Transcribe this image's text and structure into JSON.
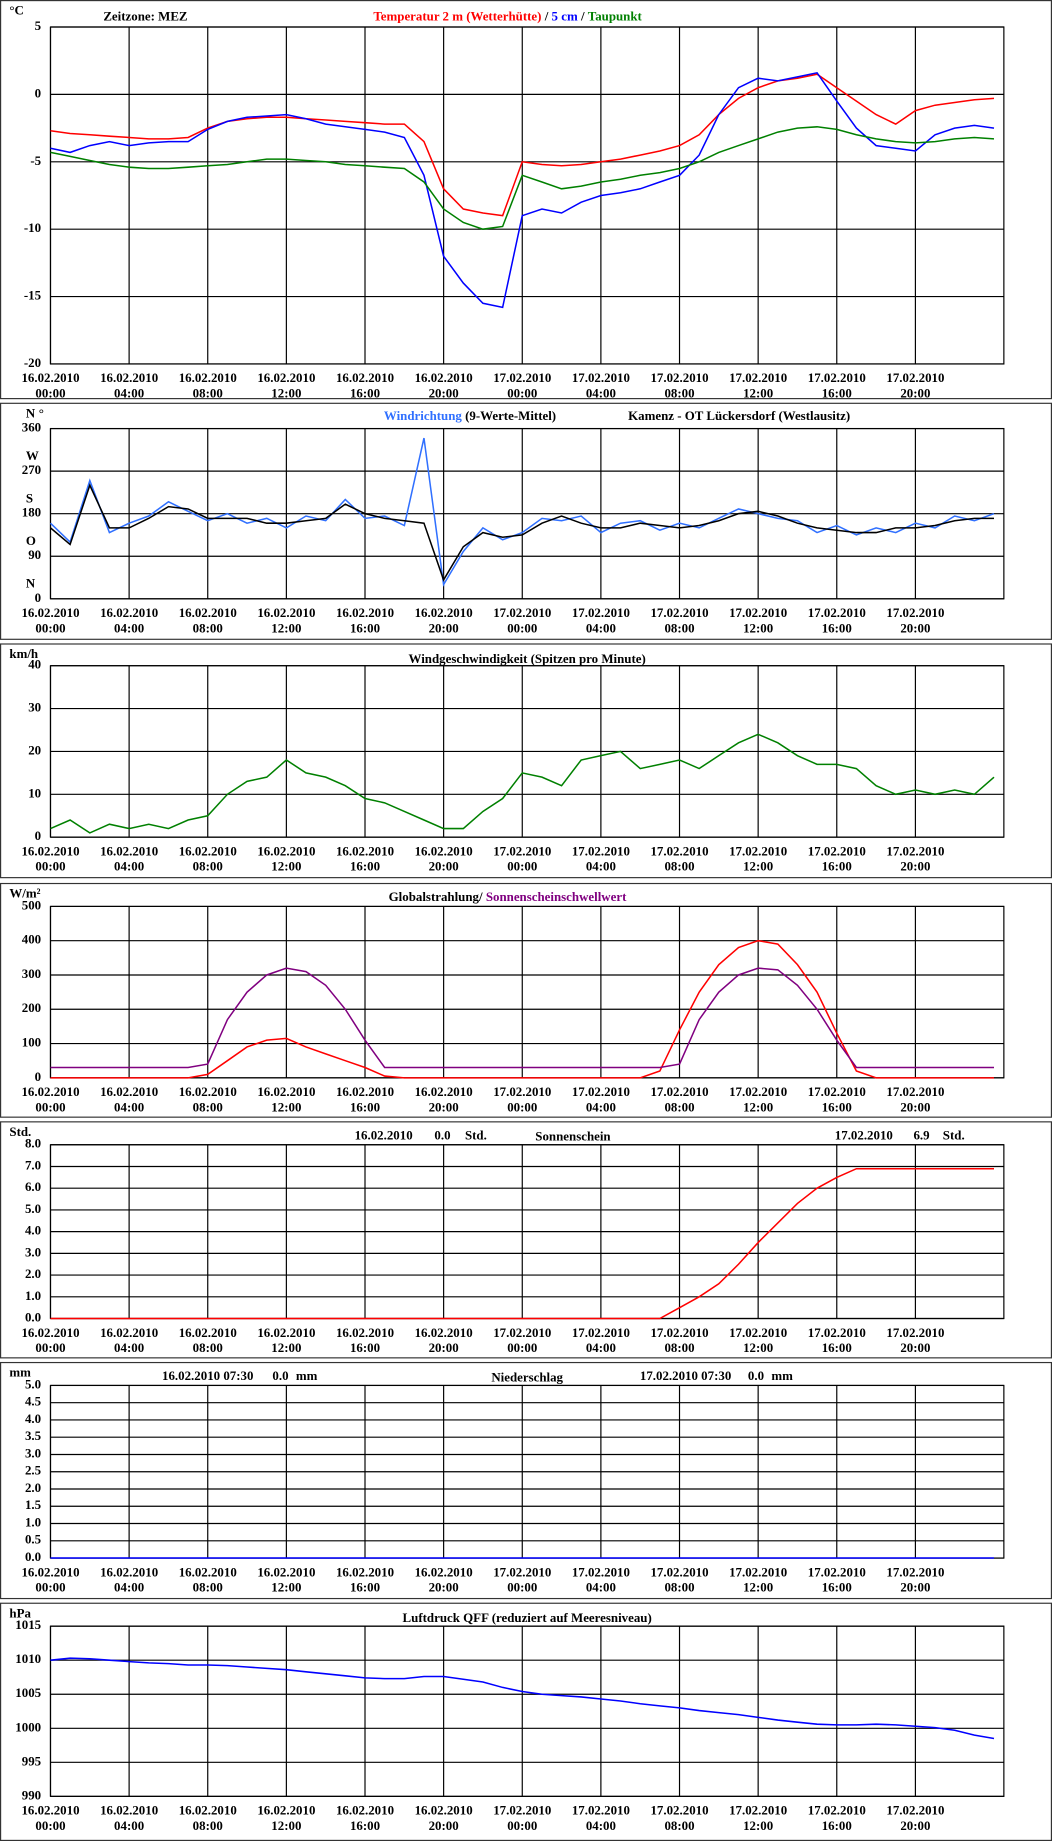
{
  "time_axis": {
    "xlim": [
      0,
      48.5
    ],
    "x": [
      0,
      1,
      2,
      3,
      4,
      5,
      6,
      7,
      8,
      9,
      10,
      11,
      12,
      13,
      14,
      15,
      16,
      17,
      18,
      19,
      20,
      21,
      22,
      23,
      24,
      25,
      26,
      27,
      28,
      29,
      30,
      31,
      32,
      33,
      34,
      35,
      36,
      37,
      38,
      39,
      40,
      41,
      42,
      43,
      44,
      45,
      46,
      47,
      48
    ],
    "xticks": [
      {
        "value": 0,
        "label": "16.02.2010",
        "time": "00:00"
      },
      {
        "value": 4,
        "label": "16.02.2010",
        "time": "04:00"
      },
      {
        "value": 8,
        "label": "16.02.2010",
        "time": "08:00"
      },
      {
        "value": 12,
        "label": "16.02.2010",
        "time": "12:00"
      },
      {
        "value": 16,
        "label": "16.02.2010",
        "time": "16:00"
      },
      {
        "value": 20,
        "label": "16.02.2010",
        "time": "20:00"
      },
      {
        "value": 24,
        "label": "17.02.2010",
        "time": "00:00"
      },
      {
        "value": 28,
        "label": "17.02.2010",
        "time": "04:00"
      },
      {
        "value": 32,
        "label": "17.02.2010",
        "time": "08:00"
      },
      {
        "value": 36,
        "label": "17.02.2010",
        "time": "12:00"
      },
      {
        "value": 40,
        "label": "17.02.2010",
        "time": "16:00"
      },
      {
        "value": 44,
        "label": "17.02.2010",
        "time": "20:00"
      }
    ]
  },
  "chart_data": [
    {
      "type": "line",
      "unit": "°C",
      "note": "Zeitzone: MEZ",
      "separator": "/",
      "ylim": [
        -20,
        5
      ],
      "yticks": [
        -20,
        -15,
        -10,
        -5,
        0,
        5
      ],
      "series": [
        {
          "name": "Temperatur 2 m (Wetterhütte)",
          "color": "#ff0000",
          "values": [
            -2.7,
            -2.9,
            -3.0,
            -3.1,
            -3.2,
            -3.3,
            -3.3,
            -3.2,
            -2.5,
            -2.0,
            -1.8,
            -1.7,
            -1.7,
            -1.8,
            -1.9,
            -2.0,
            -2.1,
            -2.2,
            -2.2,
            -3.5,
            -7.0,
            -8.5,
            -8.8,
            -9.0,
            -5.0,
            -5.2,
            -5.3,
            -5.2,
            -5.0,
            -4.8,
            -4.5,
            -4.2,
            -3.8,
            -3.0,
            -1.5,
            -0.3,
            0.5,
            1.0,
            1.2,
            1.5,
            0.5,
            -0.5,
            -1.5,
            -2.2,
            -1.2,
            -0.8,
            -0.6,
            -0.4,
            -0.3
          ]
        },
        {
          "name": "5 cm",
          "color": "#0000ff",
          "values": [
            -4.0,
            -4.3,
            -3.8,
            -3.5,
            -3.8,
            -3.6,
            -3.5,
            -3.5,
            -2.6,
            -2.0,
            -1.7,
            -1.6,
            -1.5,
            -1.8,
            -2.2,
            -2.4,
            -2.6,
            -2.8,
            -3.2,
            -6.0,
            -12,
            -14,
            -15.5,
            -15.8,
            -9,
            -8.5,
            -8.8,
            -8,
            -7.5,
            -7.3,
            -7.0,
            -6.5,
            -6.0,
            -4.5,
            -1.5,
            0.5,
            1.2,
            1.0,
            1.3,
            1.6,
            -0.5,
            -2.5,
            -3.8,
            -4.0,
            -4.2,
            -3.0,
            -2.5,
            -2.3,
            -2.5
          ]
        },
        {
          "name": "Taupunkt",
          "color": "#008000",
          "values": [
            -4.3,
            -4.6,
            -4.9,
            -5.2,
            -5.4,
            -5.5,
            -5.5,
            -5.4,
            -5.3,
            -5.2,
            -5.0,
            -4.8,
            -4.8,
            -4.9,
            -5.0,
            -5.2,
            -5.3,
            -5.4,
            -5.5,
            -6.5,
            -8.5,
            -9.5,
            -10.0,
            -9.8,
            -6.0,
            -6.5,
            -7.0,
            -6.8,
            -6.5,
            -6.3,
            -6.0,
            -5.8,
            -5.5,
            -5.0,
            -4.3,
            -3.8,
            -3.3,
            -2.8,
            -2.5,
            -2.4,
            -2.6,
            -3.0,
            -3.3,
            -3.5,
            -3.6,
            -3.5,
            -3.3,
            -3.2,
            -3.3
          ]
        }
      ]
    },
    {
      "type": "line",
      "unit": "°",
      "title": "Kamenz - OT Lückersdorf (Westlausitz)",
      "ylim": [
        0,
        360
      ],
      "yticks": [
        0,
        90,
        180,
        270,
        360
      ],
      "compass": [
        {
          "value": 0,
          "label": "N"
        },
        {
          "value": 90,
          "label": "O"
        },
        {
          "value": 180,
          "label": "S"
        },
        {
          "value": 270,
          "label": "W"
        },
        {
          "value": 360,
          "label": "N"
        }
      ],
      "series": [
        {
          "name": "Windrichtung",
          "color": "#3070ff",
          "values": [
            160,
            120,
            250,
            140,
            160,
            175,
            205,
            185,
            165,
            180,
            160,
            170,
            150,
            175,
            165,
            210,
            170,
            175,
            155,
            340,
            30,
            100,
            150,
            125,
            140,
            170,
            165,
            175,
            140,
            160,
            165,
            145,
            160,
            150,
            170,
            190,
            180,
            170,
            165,
            140,
            155,
            135,
            150,
            140,
            160,
            150,
            175,
            165,
            180
          ]
        },
        {
          "name": "(9-Werte-Mittel)",
          "color": "#000000",
          "values": [
            150,
            115,
            240,
            150,
            150,
            170,
            195,
            190,
            170,
            170,
            170,
            160,
            160,
            165,
            170,
            200,
            180,
            170,
            165,
            160,
            40,
            110,
            140,
            130,
            135,
            160,
            175,
            160,
            150,
            150,
            160,
            155,
            150,
            155,
            165,
            180,
            185,
            175,
            160,
            150,
            145,
            140,
            140,
            150,
            150,
            155,
            165,
            170,
            170
          ]
        }
      ]
    },
    {
      "type": "line",
      "unit": "km/h",
      "title": "Windgeschwindigkeit (Spitzen pro Minute)",
      "ylim": [
        0,
        40
      ],
      "yticks": [
        0,
        10,
        20,
        30,
        40
      ],
      "series": [
        {
          "color": "#008000",
          "values": [
            2,
            4,
            1,
            3,
            2,
            3,
            2,
            4,
            5,
            10,
            13,
            14,
            18,
            15,
            14,
            12,
            9,
            8,
            6,
            4,
            2,
            2,
            6,
            9,
            15,
            14,
            12,
            18,
            19,
            20,
            16,
            17,
            18,
            16,
            19,
            22,
            24,
            22,
            19,
            17,
            17,
            16,
            12,
            10,
            11,
            10,
            11,
            10,
            14
          ]
        }
      ]
    },
    {
      "type": "line",
      "unit": "W/m²",
      "separator": "/",
      "ylim": [
        0,
        500
      ],
      "yticks": [
        0,
        100,
        200,
        300,
        400,
        500
      ],
      "series": [
        {
          "name": "Globalstrahlung",
          "color": "#ff0000",
          "values": [
            0,
            0,
            0,
            0,
            0,
            0,
            0,
            0,
            10,
            50,
            90,
            110,
            115,
            90,
            70,
            50,
            30,
            5,
            0,
            0,
            0,
            0,
            0,
            0,
            0,
            0,
            0,
            0,
            0,
            0,
            0,
            20,
            140,
            250,
            330,
            380,
            400,
            390,
            330,
            250,
            130,
            20,
            0,
            0,
            0,
            0,
            0,
            0,
            0
          ]
        },
        {
          "name": "Sonnenscheinschwellwert",
          "color": "#800080",
          "values": [
            30,
            30,
            30,
            30,
            30,
            30,
            30,
            30,
            40,
            170,
            250,
            300,
            320,
            310,
            270,
            200,
            110,
            30,
            30,
            30,
            30,
            30,
            30,
            30,
            30,
            30,
            30,
            30,
            30,
            30,
            30,
            30,
            40,
            170,
            250,
            300,
            320,
            315,
            270,
            200,
            110,
            30,
            30,
            30,
            30,
            30,
            30,
            30,
            30
          ]
        }
      ]
    },
    {
      "type": "line",
      "unit": "Std.",
      "title": "Sonnenschein",
      "ylim": [
        0,
        8
      ],
      "yticks": [
        {
          "value": 0,
          "label": "0.0"
        },
        {
          "value": 1,
          "label": "1.0"
        },
        {
          "value": 2,
          "label": "2.0"
        },
        {
          "value": 3,
          "label": "3.0"
        },
        {
          "value": 4,
          "label": "4.0"
        },
        {
          "value": 5,
          "label": "5.0"
        },
        {
          "value": 6,
          "label": "6.0"
        },
        {
          "value": 7,
          "label": "7.0"
        },
        {
          "value": 8,
          "label": "8.0"
        }
      ],
      "annotations": [
        {
          "date": "16.02.2010",
          "total": {
            "value": 0,
            "label": "0.0"
          },
          "unit": "Std."
        },
        {
          "date": "17.02.2010",
          "total": 6.9,
          "unit": "Std."
        }
      ],
      "series": [
        {
          "color": "#ff0000",
          "values": [
            0,
            0,
            0,
            0,
            0,
            0,
            0,
            0,
            0,
            0,
            0,
            0,
            0,
            0,
            0,
            0,
            0,
            0,
            0,
            0,
            0,
            0,
            0,
            0,
            0,
            0,
            0,
            0,
            0,
            0,
            0,
            0,
            0.5,
            1.0,
            1.6,
            2.5,
            3.5,
            4.4,
            5.3,
            6.0,
            6.5,
            6.9,
            6.9,
            6.9,
            6.9,
            6.9,
            6.9,
            6.9,
            6.9
          ]
        }
      ]
    },
    {
      "type": "line",
      "unit": "mm",
      "title": "Niederschlag",
      "ylim": [
        0,
        5
      ],
      "yticks": [
        {
          "value": 0,
          "label": "0.0"
        },
        0.5,
        {
          "value": 1,
          "label": "1.0"
        },
        1.5,
        {
          "value": 2,
          "label": "2.0"
        },
        2.5,
        {
          "value": 3,
          "label": "3.0"
        },
        3.5,
        {
          "value": 4,
          "label": "4.0"
        },
        4.5,
        {
          "value": 5,
          "label": "5.0"
        }
      ],
      "annotations": [
        {
          "date": "16.02.2010 07:30",
          "total": {
            "value": 0,
            "label": "0.0"
          },
          "unit": "mm"
        },
        {
          "date": "17.02.2010 07:30",
          "total": {
            "value": 0,
            "label": "0.0"
          },
          "unit": "mm"
        }
      ],
      "series": [
        {
          "color": "#0000ff",
          "values": [
            0,
            0,
            0,
            0,
            0,
            0,
            0,
            0,
            0,
            0,
            0,
            0,
            0,
            0,
            0,
            0,
            0,
            0,
            0,
            0,
            0,
            0,
            0,
            0,
            0,
            0,
            0,
            0,
            0,
            0,
            0,
            0,
            0,
            0,
            0,
            0,
            0,
            0,
            0,
            0,
            0,
            0,
            0,
            0,
            0,
            0,
            0,
            0,
            0
          ]
        }
      ]
    },
    {
      "type": "line",
      "unit": "hPa",
      "title": "Luftdruck QFF (reduziert auf Meeresniveau)",
      "ylim": [
        990,
        1015
      ],
      "yticks": [
        990,
        995,
        1000,
        1005,
        1010,
        1015
      ],
      "series": [
        {
          "color": "#0000ff",
          "values": [
            1010.0,
            1010.3,
            1010.2,
            1010.0,
            1009.8,
            1009.6,
            1009.5,
            1009.3,
            1009.3,
            1009.2,
            1009.0,
            1008.8,
            1008.6,
            1008.3,
            1008.0,
            1007.7,
            1007.4,
            1007.3,
            1007.3,
            1007.6,
            1007.6,
            1007.2,
            1006.8,
            1006.0,
            1005.4,
            1005.0,
            1004.8,
            1004.6,
            1004.3,
            1004.0,
            1003.6,
            1003.3,
            1003.0,
            1002.6,
            1002.3,
            1002.0,
            1001.6,
            1001.2,
            1000.9,
            1000.6,
            1000.5,
            1000.5,
            1000.6,
            1000.5,
            1000.3,
            1000.1,
            999.7,
            999.0,
            998.5
          ]
        }
      ]
    }
  ]
}
